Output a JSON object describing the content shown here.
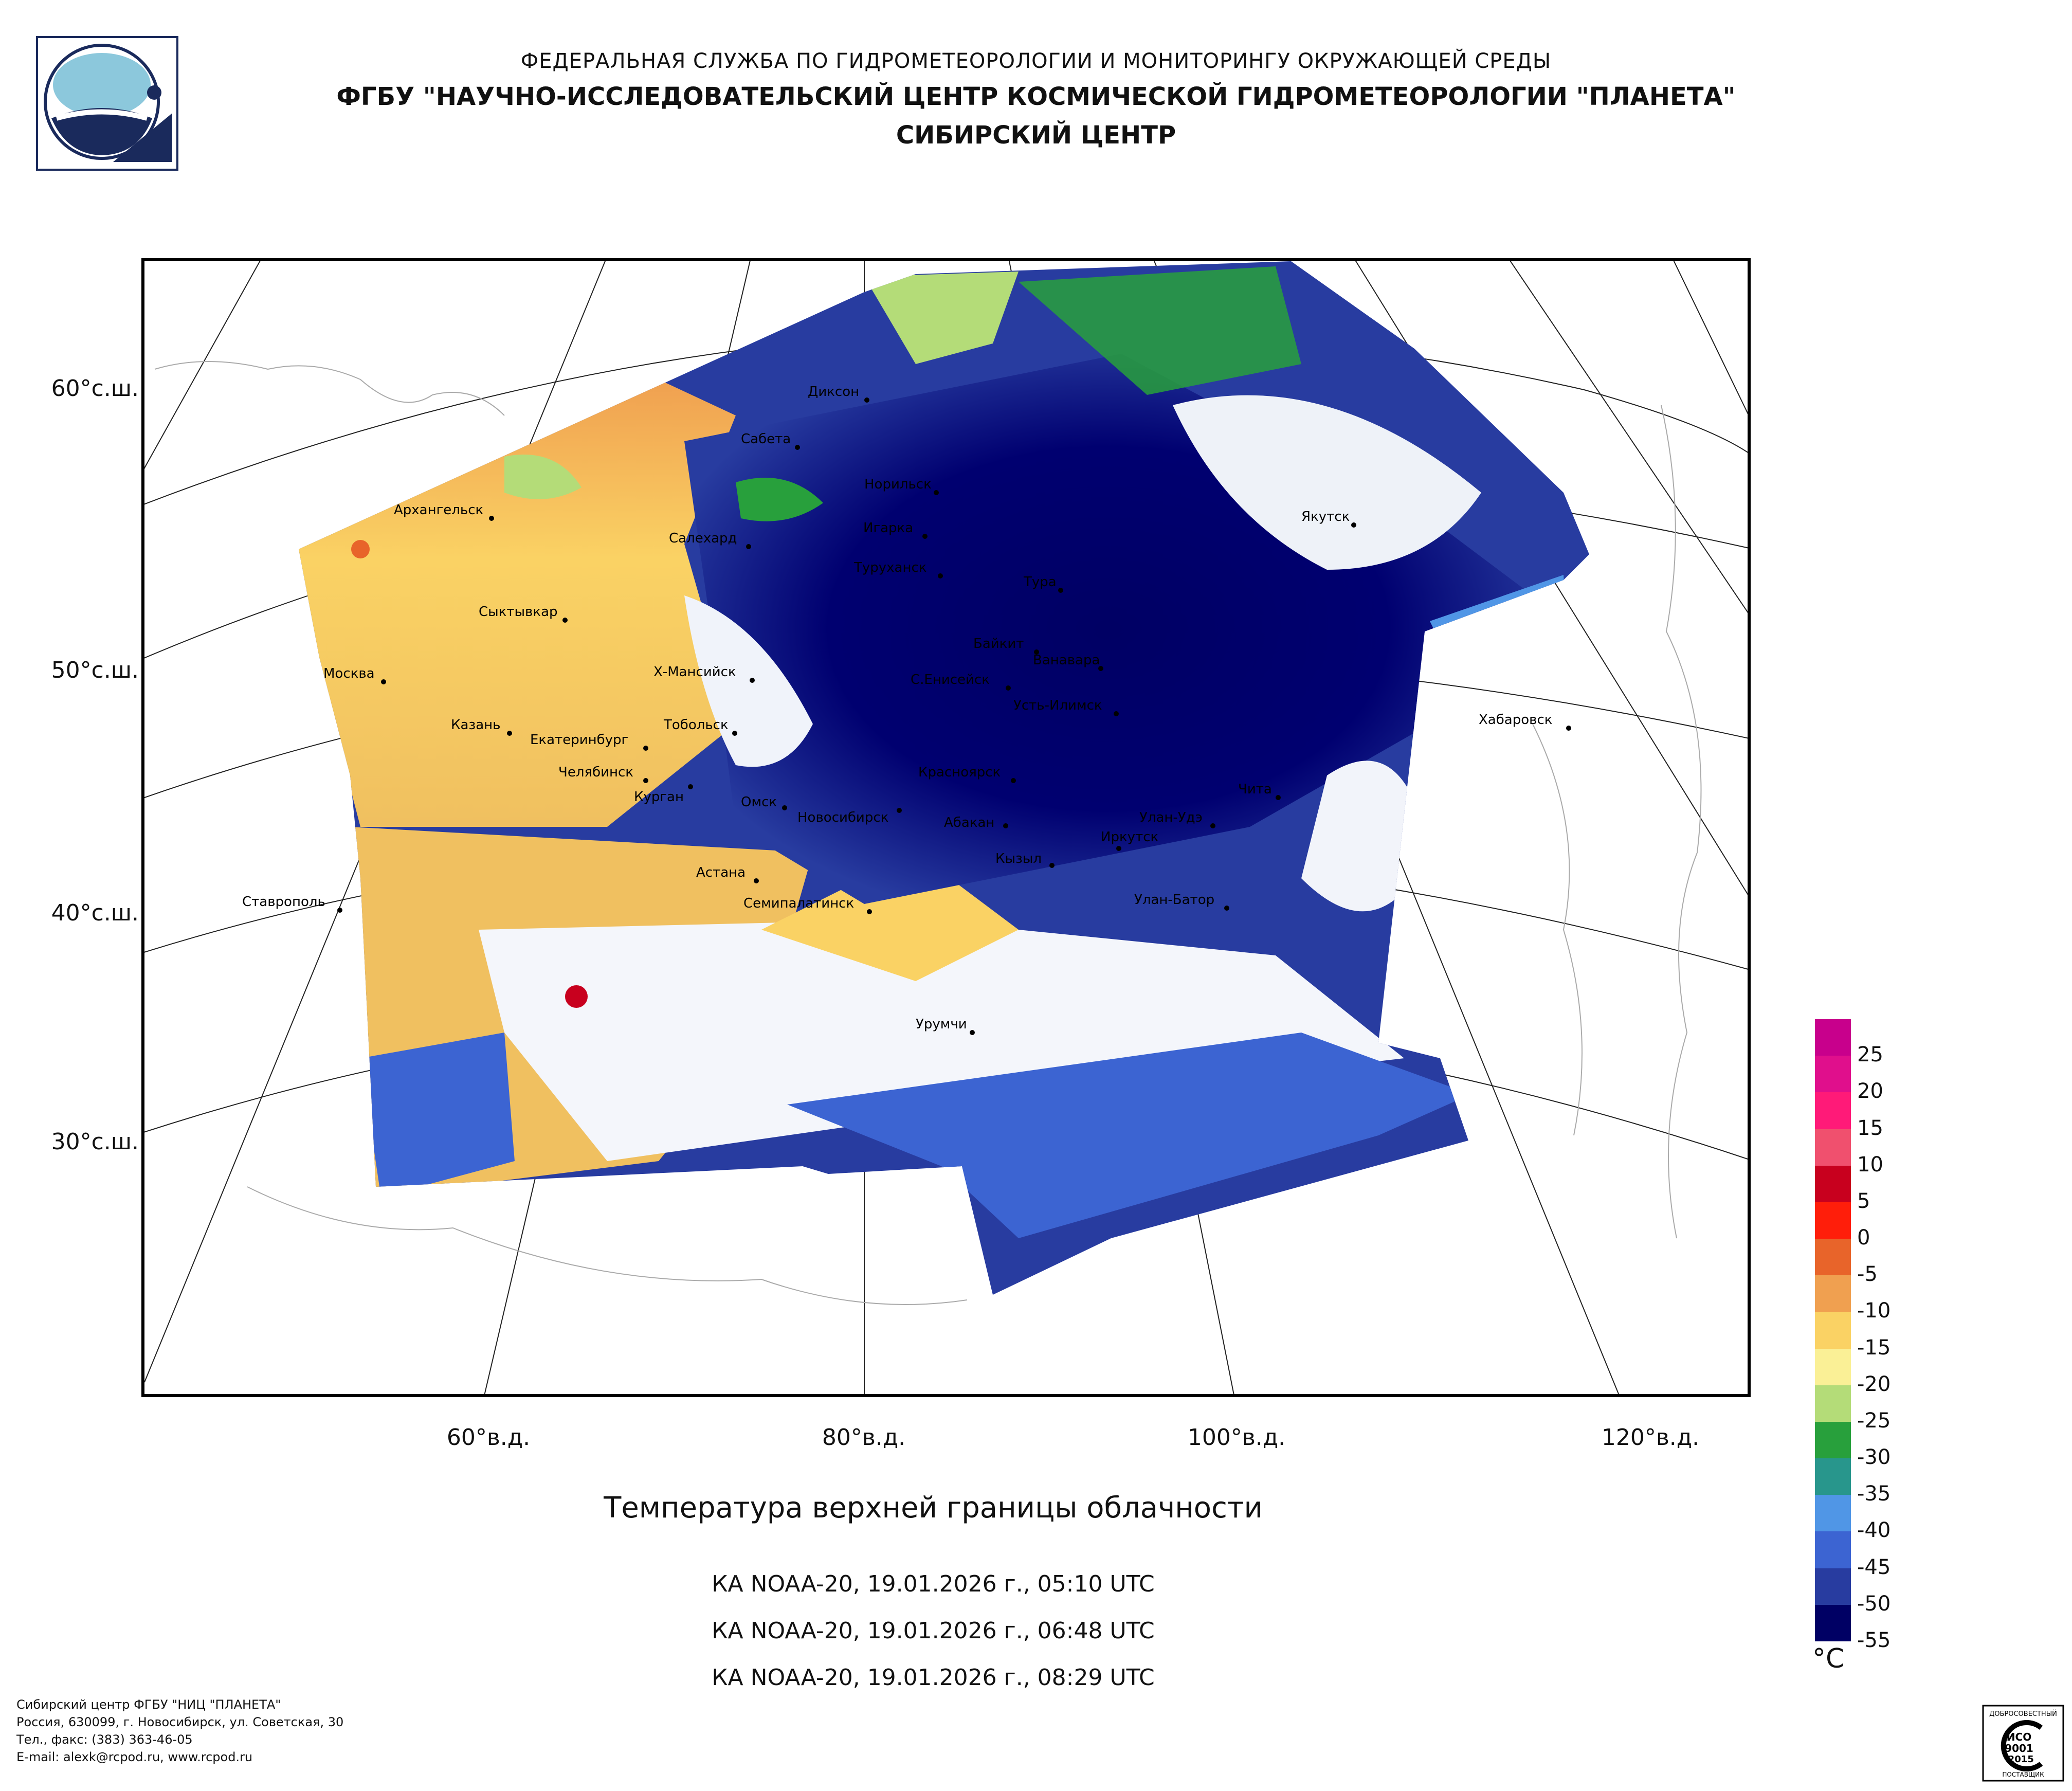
{
  "header": {
    "line1": "ФЕДЕРАЛЬНАЯ СЛУЖБА ПО ГИДРОМЕТЕОРОЛОГИИ И МОНИТОРИНГУ ОКРУЖАЮЩЕЙ СРЕДЫ",
    "line2": "ФГБУ \"НАУЧНО-ИССЛЕДОВАТЕЛЬСКИЙ ЦЕНТР КОСМИЧЕСКОЙ ГИДРОМЕТЕОРОЛОГИИ \"ПЛАНЕТА\"",
    "line3": "СИБИРСКИЙ ЦЕНТР"
  },
  "map": {
    "lat_labels": [
      "60°с.ш.",
      "50°с.ш.",
      "40°с.ш.",
      "30°с.ш."
    ],
    "lon_labels": [
      "60°в.д.",
      "80°в.д.",
      "100°в.д.",
      "120°в.д."
    ],
    "cities": [
      "Диксон",
      "Сабета",
      "Норильск",
      "Архангельск",
      "Салехард",
      "Игарка",
      "Туруханск",
      "Тура",
      "Якутск",
      "Сыктывкар",
      "Байкит",
      "Ванавара",
      "Москва",
      "Х-Мансийск",
      "С.Енисейск",
      "Усть-Илимск",
      "Хабаровск",
      "Казань",
      "Екатеринбург",
      "Тобольск",
      "Челябинск",
      "Курган",
      "Омск",
      "Новосибирск",
      "Красноярск",
      "Абакан",
      "Чита",
      "Улан-Удэ",
      "Иркутск",
      "Кызыл",
      "Астана",
      "Ставрополь",
      "Семипалатинск",
      "Улан-Батор",
      "Урумчи"
    ]
  },
  "caption": "Температура верхней границы облачности",
  "passes": [
    "КА NOAA-20, 19.01.2026 г., 05:10 UTC",
    "КА NOAA-20, 19.01.2026 г., 06:48 UTC",
    "КА NOAA-20, 19.01.2026 г., 08:29 UTC"
  ],
  "legend": {
    "unit": "°C",
    "ticks": [
      "25",
      "20",
      "15",
      "10",
      "5",
      "0",
      "-5",
      "-10",
      "-15",
      "-20",
      "-25",
      "-30",
      "-35",
      "-40",
      "-45",
      "-50",
      "-55"
    ],
    "colors": [
      "#c8008c",
      "#e00f8c",
      "#ff1a78",
      "#f0506e",
      "#c8001e",
      "#ff1e0a",
      "#e8642a",
      "#f0a050",
      "#fad264",
      "#faf096",
      "#b4dc78",
      "#28a03c",
      "#28968c",
      "#5096e6",
      "#3c64d2",
      "#283ca0",
      "#000064"
    ]
  },
  "footer": [
    "Сибирский центр ФГБУ \"НИЦ \"ПЛАНЕТА\"",
    "Россия, 630099, г. Новосибирск, ул. Советская, 30",
    "Тел., факс: (383) 363-46-05",
    "E-mail: alexk@rcpod.ru, www.rcpod.ru"
  ],
  "iso_badge": {
    "arc_text": "ДОБРОСОВЕСТНЫЙ",
    "line1": "ИСО",
    "line2": "9001",
    "line3": "-2015",
    "bottom": "ПОСТАВЩИК"
  }
}
